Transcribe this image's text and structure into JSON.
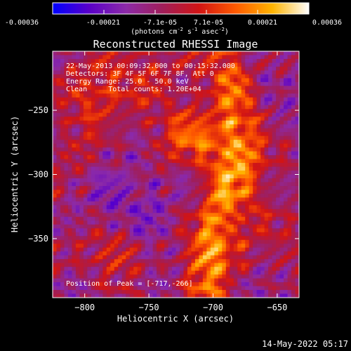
{
  "colorbar": {
    "ticks": [
      "-0.00036",
      "-0.00021",
      "-7.1e-05",
      "7.1e-05",
      "0.00021",
      "0.00036"
    ],
    "units_parts": [
      "(photons cm",
      "-2",
      " s",
      "-1",
      " asec",
      "-2",
      ")"
    ],
    "colors": [
      "#0000ff",
      "#5a00c8",
      "#8c2aa8",
      "#a01e5a",
      "#d21414",
      "#ff5a00",
      "#ffb400",
      "#ffffff"
    ]
  },
  "chart_data": {
    "type": "heatmap",
    "title": "Reconstructed RHESSI Image",
    "xlabel": "Heliocentric X (arcsec)",
    "ylabel": "Heliocentric Y (arcsec)",
    "xlim": [
      -825,
      -633
    ],
    "ylim": [
      -396,
      -204
    ],
    "xticks": [
      -800,
      -750,
      -700,
      -650
    ],
    "yticks": [
      -250,
      -300,
      -350
    ],
    "colorbar_range": [
      -0.00036,
      0.00036
    ],
    "peak": [
      -717,
      -266
    ],
    "annotations": [
      "22-May-2013 00:09:32.000 to 00:15:32.000",
      "Detectors: 3F 4F 5F 6F 7F 8F, Att 0",
      "Energy Range: 25.0 - 50.0 keV",
      "Clean     Total counts: 1.20E+04"
    ],
    "peak_label": "Position of Peak = [-717,-266]"
  },
  "footer": {
    "timestamp": "14-May-2022 05:17"
  }
}
